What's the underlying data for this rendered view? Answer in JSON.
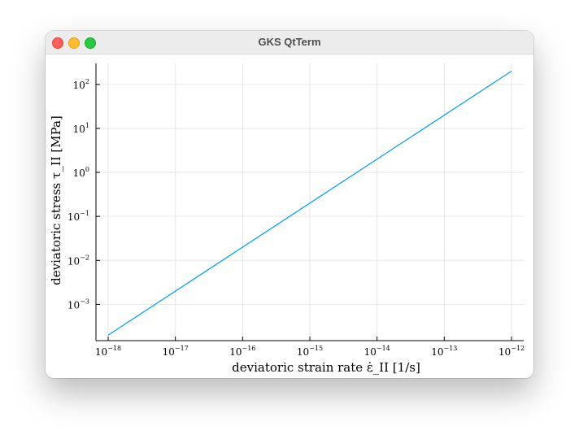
{
  "window": {
    "title": "GKS QtTerm"
  },
  "colors": {
    "series": "#009af9",
    "grid": "#e6e6e6",
    "axis": "#000000"
  },
  "chart_data": {
    "type": "line",
    "xscale": "log10",
    "yscale": "log10",
    "grid": true,
    "legend": "none",
    "xlabel": "deviatoric strain rate  ε̇_II   [1/s]",
    "ylabel": "deviatoric stress  τ_II   [MPa]",
    "xlim": [
      1e-18,
      1e-12
    ],
    "ylim": [
      0.00015,
      300
    ],
    "x_tick_labels": [
      {
        "base": "10",
        "exp": "−18"
      },
      {
        "base": "10",
        "exp": "−17"
      },
      {
        "base": "10",
        "exp": "−16"
      },
      {
        "base": "10",
        "exp": "−15"
      },
      {
        "base": "10",
        "exp": "−14"
      },
      {
        "base": "10",
        "exp": "−13"
      },
      {
        "base": "10",
        "exp": "−12"
      }
    ],
    "y_tick_labels": [
      {
        "base": "10",
        "exp": "−3"
      },
      {
        "base": "10",
        "exp": "−2"
      },
      {
        "base": "10",
        "exp": "−1"
      },
      {
        "base": "10",
        "exp": "0"
      },
      {
        "base": "10",
        "exp": "1"
      },
      {
        "base": "10",
        "exp": "2"
      }
    ],
    "series": [
      {
        "x": [
          1e-18,
          1e-12
        ],
        "y": [
          0.0002,
          200
        ]
      }
    ]
  }
}
